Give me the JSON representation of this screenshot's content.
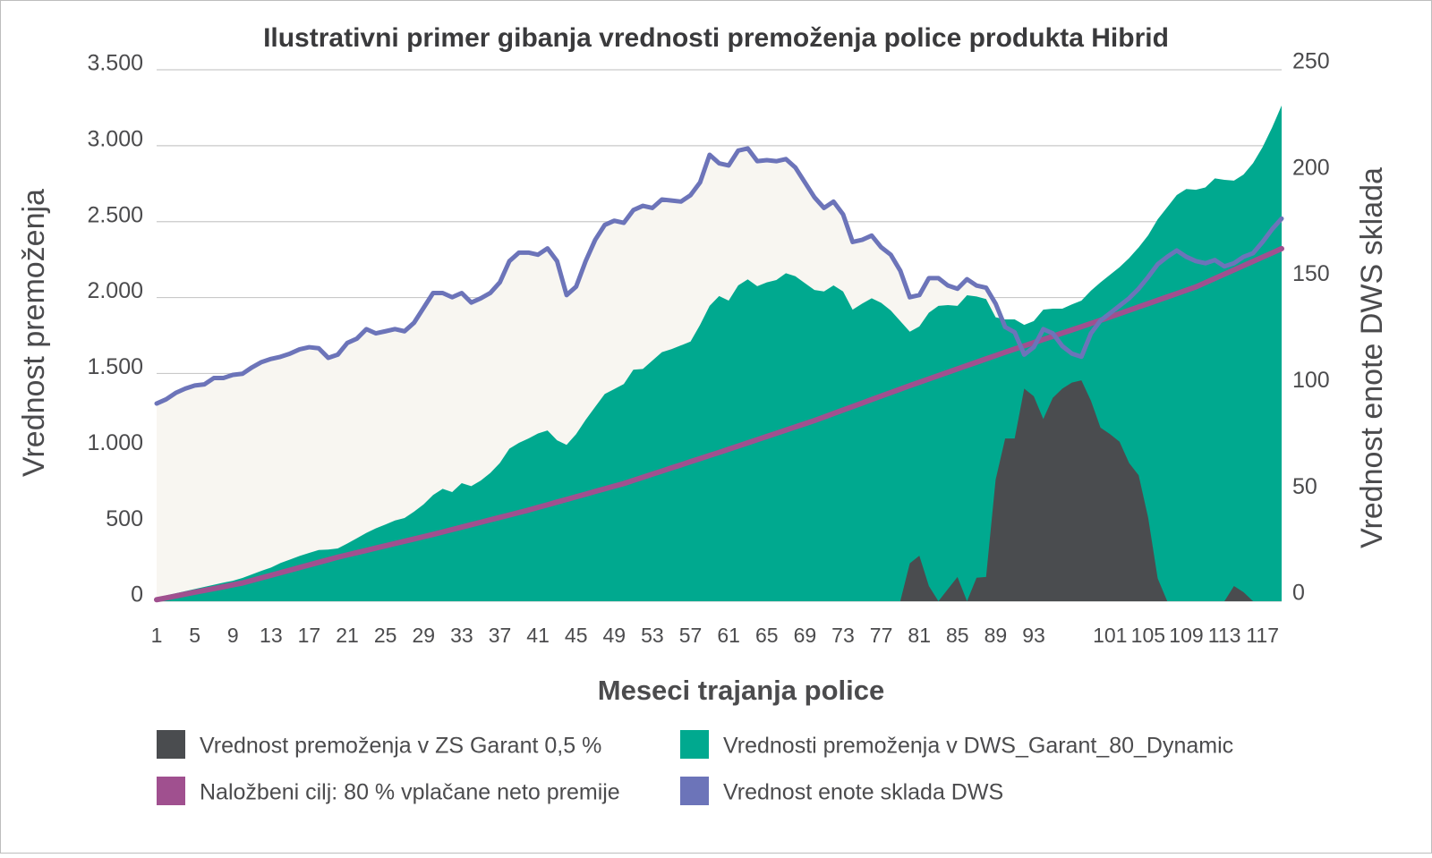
{
  "chart_data": {
    "type": "area",
    "title": "Ilustrativni primer gibanja vrednosti premoženja police produkta Hibrid",
    "x_label": "Meseci trajanja police",
    "y_label": "Vrednost premoženja",
    "y2_label": "Vrednost enote DWS sklada",
    "ylim": [
      0,
      3500
    ],
    "yticks": [
      0,
      500,
      {
        "value": 1000,
        "label": "1.000"
      },
      {
        "value": 1500,
        "label": "1.500"
      },
      {
        "value": 2000,
        "label": "2.000"
      },
      {
        "value": 2500,
        "label": "2.500"
      },
      {
        "value": 3000,
        "label": "3.000"
      },
      {
        "value": 3500,
        "label": "3.500"
      }
    ],
    "y2lim": [
      0,
      250
    ],
    "y2ticks": [
      0,
      50,
      100,
      150,
      200,
      250
    ],
    "grid": true,
    "legend": "bottom",
    "categories": [
      "1",
      null,
      null,
      null,
      "5",
      null,
      null,
      null,
      "9",
      null,
      null,
      null,
      "13",
      null,
      null,
      null,
      "17",
      null,
      null,
      null,
      "21",
      null,
      null,
      null,
      "25",
      null,
      null,
      null,
      "29",
      null,
      null,
      null,
      "33",
      null,
      null,
      null,
      "37",
      null,
      null,
      null,
      "41",
      null,
      null,
      null,
      "45",
      null,
      null,
      null,
      "49",
      null,
      null,
      null,
      "53",
      null,
      null,
      null,
      "57",
      null,
      null,
      null,
      "61",
      null,
      null,
      null,
      "65",
      null,
      null,
      null,
      "69",
      null,
      null,
      null,
      "73",
      null,
      null,
      null,
      "77",
      null,
      null,
      null,
      "81",
      null,
      null,
      null,
      "85",
      null,
      null,
      null,
      "89",
      null,
      null,
      null,
      "93",
      null,
      null,
      null,
      null,
      null,
      null,
      null,
      "101",
      null,
      null,
      null,
      "105",
      null,
      null,
      null,
      "109",
      null,
      null,
      null,
      "113",
      null,
      null,
      null,
      "117",
      null,
      null
    ],
    "series": [
      {
        "name": "Vrednost premoženja v ZS Garant 0,5 %",
        "type": "area",
        "color": "#4a4c4f",
        "values": [
          0,
          0,
          0,
          0,
          0,
          0,
          0,
          0,
          0,
          0,
          0,
          0,
          0,
          0,
          0,
          0,
          0,
          0,
          0,
          0,
          0,
          0,
          0,
          0,
          0,
          0,
          0,
          0,
          0,
          0,
          0,
          0,
          0,
          0,
          0,
          0,
          0,
          0,
          0,
          0,
          0,
          0,
          0,
          0,
          0,
          0,
          0,
          0,
          0,
          0,
          0,
          0,
          0,
          0,
          0,
          0,
          0,
          0,
          0,
          0,
          0,
          0,
          0,
          0,
          0,
          0,
          0,
          0,
          0,
          0,
          0,
          0,
          0,
          0,
          0,
          0,
          0,
          0,
          0,
          250,
          300,
          100,
          0,
          80,
          160,
          0,
          155,
          160,
          800,
          1072,
          1072,
          1400,
          1350,
          1200,
          1340,
          1400,
          1440,
          1455,
          1320,
          1143,
          1100,
          1050,
          910,
          830,
          550,
          150,
          0,
          0,
          0,
          0,
          0,
          0,
          0,
          100,
          60,
          0,
          0,
          0,
          0
        ]
      },
      {
        "name": "Vrednosti premoženja v DWS_Garant_80_Dynamic",
        "type": "area",
        "color": "#00a98f",
        "values": [
          24,
          38,
          52,
          66,
          80,
          94,
          108,
          122,
          135,
          153,
          177,
          200,
          222,
          252,
          275,
          298,
          318,
          337,
          340,
          348,
          380,
          415,
          450,
          480,
          505,
          532,
          548,
          590,
          638,
          700,
          740,
          719,
          778,
          758,
          795,
          845,
          910,
          1005,
          1043,
          1072,
          1105,
          1125,
          1060,
          1030,
          1100,
          1195,
          1280,
          1365,
          1397,
          1430,
          1525,
          1530,
          1585,
          1640,
          1660,
          1685,
          1710,
          1820,
          1945,
          2010,
          1980,
          2080,
          2120,
          2075,
          2100,
          2115,
          2160,
          2140,
          2095,
          2050,
          2040,
          2080,
          2040,
          1920,
          1960,
          1995,
          1965,
          1915,
          1845,
          1775,
          1810,
          1900,
          1945,
          1950,
          1945,
          2015,
          2007,
          1990,
          1870,
          1856,
          1856,
          1820,
          1845,
          1920,
          1927,
          1927,
          1955,
          1980,
          2045,
          2100,
          2150,
          2200,
          2260,
          2330,
          2410,
          2515,
          2595,
          2675,
          2715,
          2710,
          2725,
          2785,
          2775,
          2770,
          2810,
          2885,
          2990,
          3120,
          3265
        ]
      },
      {
        "name": "Naložbeni cilj: 80 % vplačane neto premije",
        "type": "line",
        "color": "#a0508f",
        "values": [
          10,
          22,
          34,
          47,
          59,
          71,
          83,
          95,
          108,
          120,
          137,
          154,
          171,
          188,
          205,
          222,
          239,
          256,
          273,
          290,
          305,
          320,
          335,
          350,
          365,
          380,
          395,
          410,
          425,
          440,
          456,
          472,
          488,
          504,
          520,
          536,
          552,
          568,
          584,
          600,
          618,
          635,
          653,
          670,
          688,
          705,
          723,
          740,
          758,
          775,
          796,
          816,
          837,
          857,
          878,
          898,
          919,
          939,
          960,
          980,
          1001,
          1022,
          1043,
          1064,
          1085,
          1106,
          1127,
          1148,
          1169,
          1190,
          1213,
          1236,
          1259,
          1282,
          1305,
          1328,
          1351,
          1374,
          1397,
          1420,
          1442,
          1464,
          1486,
          1508,
          1530,
          1552,
          1574,
          1596,
          1618,
          1640,
          1661,
          1682,
          1703,
          1724,
          1745,
          1766,
          1787,
          1808,
          1829,
          1850,
          1872,
          1894,
          1916,
          1938,
          1960,
          1982,
          2004,
          2026,
          2048,
          2070,
          2098,
          2126,
          2154,
          2182,
          2210,
          2238,
          2266,
          2294,
          2322
        ]
      },
      {
        "name": "Vrednost enote sklada DWS",
        "type": "line",
        "axis": "y2",
        "color": "#6c74b9",
        "fill": "#f8f6f1",
        "values": [
          93,
          95,
          98,
          100,
          101.5,
          102,
          105,
          105,
          106.5,
          107,
          110,
          112.5,
          114,
          115,
          116.5,
          118.5,
          119.5,
          119,
          114.5,
          116,
          121.5,
          123.5,
          128,
          126,
          127,
          128,
          127,
          131,
          138,
          145,
          145,
          143,
          145,
          140.5,
          142.5,
          145,
          150,
          160,
          164,
          164,
          163,
          166,
          160,
          144,
          148,
          160,
          170,
          177,
          179,
          178,
          184,
          186,
          185,
          189,
          188.5,
          188,
          191,
          197,
          210,
          206,
          205,
          212,
          213,
          207,
          207.5,
          207,
          208,
          204,
          197,
          190,
          185,
          188,
          182,
          169,
          170,
          172,
          166.5,
          163,
          155.5,
          143,
          144,
          152,
          152,
          148.5,
          147,
          151.5,
          148.5,
          147.5,
          140,
          129,
          126.5,
          116,
          119.5,
          128,
          126,
          120,
          116.5,
          115,
          126,
          132,
          135.5,
          139,
          142.5,
          147,
          152.5,
          158.5,
          162,
          165,
          162,
          160,
          159,
          160.5,
          157.5,
          159,
          162,
          163.7,
          169,
          175,
          180
        ]
      }
    ]
  }
}
